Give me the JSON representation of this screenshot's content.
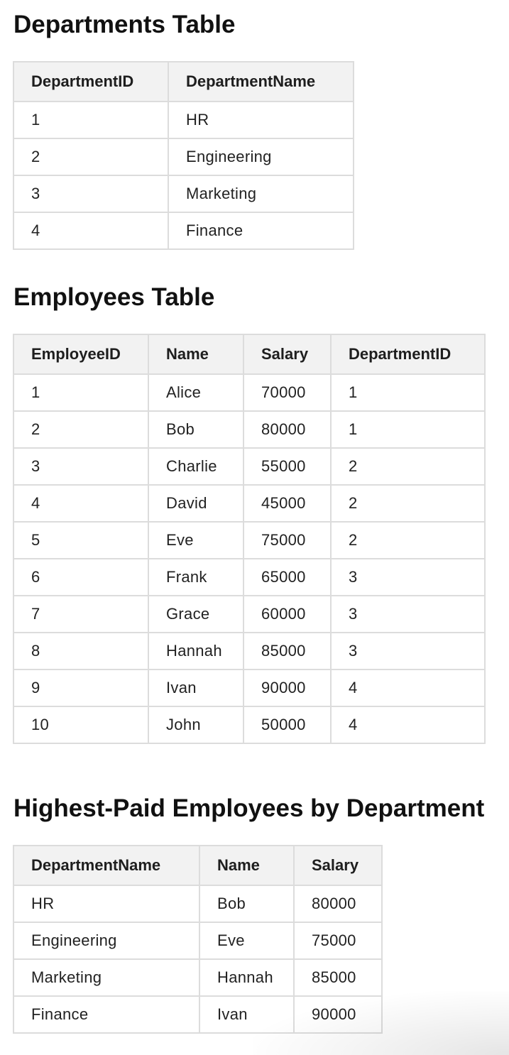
{
  "departments": {
    "title": "Departments Table",
    "headers": [
      "DepartmentID",
      "DepartmentName"
    ],
    "rows": [
      [
        "1",
        "HR"
      ],
      [
        "2",
        "Engineering"
      ],
      [
        "3",
        "Marketing"
      ],
      [
        "4",
        "Finance"
      ]
    ]
  },
  "employees": {
    "title": "Employees Table",
    "headers": [
      "EmployeeID",
      "Name",
      "Salary",
      "DepartmentID"
    ],
    "rows": [
      [
        "1",
        "Alice",
        "70000",
        "1"
      ],
      [
        "2",
        "Bob",
        "80000",
        "1"
      ],
      [
        "3",
        "Charlie",
        "55000",
        "2"
      ],
      [
        "4",
        "David",
        "45000",
        "2"
      ],
      [
        "5",
        "Eve",
        "75000",
        "2"
      ],
      [
        "6",
        "Frank",
        "65000",
        "3"
      ],
      [
        "7",
        "Grace",
        "60000",
        "3"
      ],
      [
        "8",
        "Hannah",
        "85000",
        "3"
      ],
      [
        "9",
        "Ivan",
        "90000",
        "4"
      ],
      [
        "10",
        "John",
        "50000",
        "4"
      ]
    ]
  },
  "highest_paid": {
    "title": "Highest-Paid Employees by Department",
    "headers": [
      "DepartmentName",
      "Name",
      "Salary"
    ],
    "rows": [
      [
        "HR",
        "Bob",
        "80000"
      ],
      [
        "Engineering",
        "Eve",
        "75000"
      ],
      [
        "Marketing",
        "Hannah",
        "85000"
      ],
      [
        "Finance",
        "Ivan",
        "90000"
      ]
    ]
  }
}
